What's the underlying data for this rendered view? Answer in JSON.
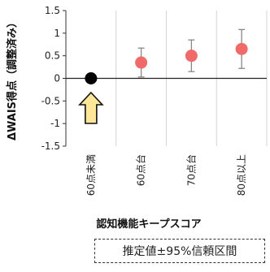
{
  "chart_data": {
    "type": "scatter",
    "ylabel": "ΔWAIS得点（調整済み）",
    "xlabel": "認知機能キープスコア",
    "ylim": [
      -1.5,
      1.5
    ],
    "yticks": [
      "1.5",
      "1",
      "0.5",
      "0",
      "-0.5",
      "-1",
      "-1.5"
    ],
    "categories": [
      "60点未満",
      "60点台",
      "70点台",
      "80点以上"
    ],
    "points": [
      {
        "category": "60点未満",
        "value": 0.0,
        "ci_low": null,
        "ci_high": null,
        "role": "reference"
      },
      {
        "category": "60点台",
        "value": 0.35,
        "ci_low": 0.03,
        "ci_high": 0.67,
        "role": "estimate"
      },
      {
        "category": "70点台",
        "value": 0.5,
        "ci_low": 0.15,
        "ci_high": 0.85,
        "role": "estimate"
      },
      {
        "category": "80点以上",
        "value": 0.65,
        "ci_low": 0.22,
        "ci_high": 1.08,
        "role": "estimate"
      }
    ],
    "grid": "vertical",
    "reference_arrow": "60点未満",
    "colors": {
      "estimate": "#f06a6a",
      "reference": "#000000",
      "errorbar": "#888888",
      "arrow_fill": "#ffe699",
      "arrow_stroke": "#111111"
    }
  },
  "legend_note": "推定値±95%信頼区間"
}
